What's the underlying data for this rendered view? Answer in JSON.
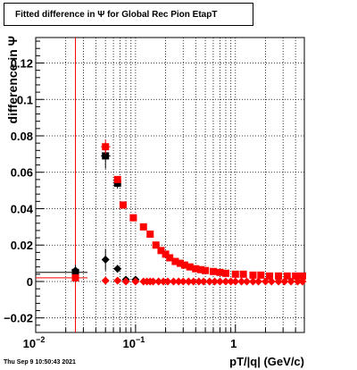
{
  "chart_data": {
    "type": "scatter",
    "title": "Fitted difference in  Ψ  for Global Rec Pion EtapT",
    "xlabel": "pT/|q| (GeV/c)",
    "ylabel": "difference in Ψ",
    "xscale": "log",
    "xlim": [
      0.01,
      4.9
    ],
    "ylim": [
      -0.028,
      0.134
    ],
    "grid": true,
    "x_ticks": [
      {
        "value": 0.01,
        "label": "10",
        "sup": "−2"
      },
      {
        "value": 0.1,
        "label": "10",
        "sup": "−1"
      },
      {
        "value": 1,
        "label": "1",
        "sup": ""
      }
    ],
    "y_ticks": [
      {
        "value": -0.02,
        "label": "−0.02"
      },
      {
        "value": 0,
        "label": "0"
      },
      {
        "value": 0.02,
        "label": "0.02"
      },
      {
        "value": 0.04,
        "label": "0.04"
      },
      {
        "value": 0.06,
        "label": "0.06"
      },
      {
        "value": 0.08,
        "label": "0.08"
      },
      {
        "value": 0.1,
        "label": "0.1"
      },
      {
        "value": 0.12,
        "label": "0.12"
      }
    ],
    "vertical_line_x": 0.025,
    "series": [
      {
        "marker": "square",
        "color": "#000000",
        "points": [
          {
            "x": 0.025,
            "y": 0.005,
            "xerr": [
              0.01,
              0.033
            ],
            "yerr": 0.004
          },
          {
            "x": 0.05,
            "y": 0.069,
            "xerr": [
              0.045,
              0.056
            ],
            "yerr": 0.007
          },
          {
            "x": 0.066,
            "y": 0.054,
            "yerr": 0.003
          }
        ]
      },
      {
        "marker": "diamond",
        "color": "#000000",
        "points": [
          {
            "x": 0.025,
            "y": 0.006,
            "yerr": 0.002
          },
          {
            "x": 0.05,
            "y": 0.012,
            "yerr": 0.006
          },
          {
            "x": 0.066,
            "y": 0.007,
            "yerr": 0.002
          },
          {
            "x": 0.08,
            "y": 0.001
          },
          {
            "x": 0.1,
            "y": 0.001
          }
        ]
      },
      {
        "marker": "square",
        "color": "#ff0000",
        "points": [
          {
            "x": 0.025,
            "y": 0.002,
            "xerr": [
              0.01,
              0.033
            ]
          },
          {
            "x": 0.05,
            "y": 0.074,
            "xerr": [
              0.045,
              0.056
            ],
            "yerr": 0.004
          },
          {
            "x": 0.066,
            "y": 0.056
          },
          {
            "x": 0.075,
            "y": 0.042
          },
          {
            "x": 0.095,
            "y": 0.035
          },
          {
            "x": 0.12,
            "y": 0.03
          },
          {
            "x": 0.14,
            "y": 0.026
          },
          {
            "x": 0.16,
            "y": 0.02
          },
          {
            "x": 0.18,
            "y": 0.017
          },
          {
            "x": 0.2,
            "y": 0.015
          },
          {
            "x": 0.22,
            "y": 0.013
          },
          {
            "x": 0.25,
            "y": 0.011
          },
          {
            "x": 0.28,
            "y": 0.01
          },
          {
            "x": 0.31,
            "y": 0.009
          },
          {
            "x": 0.35,
            "y": 0.008
          },
          {
            "x": 0.4,
            "y": 0.007
          },
          {
            "x": 0.45,
            "y": 0.0065
          },
          {
            "x": 0.5,
            "y": 0.006
          },
          {
            "x": 0.6,
            "y": 0.0055
          },
          {
            "x": 0.7,
            "y": 0.005
          },
          {
            "x": 0.8,
            "y": 0.0045
          },
          {
            "x": 1.0,
            "y": 0.004
          },
          {
            "x": 1.2,
            "y": 0.004
          },
          {
            "x": 1.5,
            "y": 0.0035
          },
          {
            "x": 1.8,
            "y": 0.0035
          },
          {
            "x": 2.2,
            "y": 0.003
          },
          {
            "x": 2.7,
            "y": 0.003
          },
          {
            "x": 3.3,
            "y": 0.003
          },
          {
            "x": 4.0,
            "y": 0.003
          },
          {
            "x": 4.7,
            "y": 0.003
          }
        ]
      },
      {
        "marker": "diamond",
        "color": "#ff0000",
        "points": [
          {
            "x": 0.05,
            "y": 0.0005
          },
          {
            "x": 0.066,
            "y": 0.0005
          },
          {
            "x": 0.08,
            "y": 0.0
          },
          {
            "x": 0.1,
            "y": 0.0
          },
          {
            "x": 0.12,
            "y": 0.0
          },
          {
            "x": 0.13,
            "y": 0.0
          },
          {
            "x": 0.14,
            "y": 0.0
          },
          {
            "x": 0.15,
            "y": 0.0
          },
          {
            "x": 0.17,
            "y": 0.0
          },
          {
            "x": 0.19,
            "y": 0.0
          },
          {
            "x": 0.21,
            "y": 0.0
          },
          {
            "x": 0.24,
            "y": 0.0
          },
          {
            "x": 0.27,
            "y": 0.0
          },
          {
            "x": 0.3,
            "y": 0.0
          },
          {
            "x": 0.34,
            "y": 0.0
          },
          {
            "x": 0.38,
            "y": 0.0
          },
          {
            "x": 0.43,
            "y": 0.0
          },
          {
            "x": 0.48,
            "y": 0.0
          },
          {
            "x": 0.55,
            "y": 0.0
          },
          {
            "x": 0.62,
            "y": 0.0
          },
          {
            "x": 0.7,
            "y": 0.0
          },
          {
            "x": 0.8,
            "y": 0.0
          },
          {
            "x": 0.9,
            "y": 0.0
          },
          {
            "x": 1.0,
            "y": 0.0
          },
          {
            "x": 1.15,
            "y": 0.0
          },
          {
            "x": 1.3,
            "y": 0.0
          },
          {
            "x": 1.5,
            "y": 0.0
          },
          {
            "x": 1.7,
            "y": 0.0
          },
          {
            "x": 2.0,
            "y": 0.0
          },
          {
            "x": 2.3,
            "y": 0.0
          },
          {
            "x": 2.7,
            "y": 0.0
          },
          {
            "x": 3.1,
            "y": 0.0
          },
          {
            "x": 3.6,
            "y": 0.0
          },
          {
            "x": 4.2,
            "y": 0.0
          },
          {
            "x": 4.7,
            "y": 0.0
          }
        ]
      }
    ]
  },
  "footer": {
    "timestamp": "Thu Sep  9 10:50:43 2021"
  }
}
